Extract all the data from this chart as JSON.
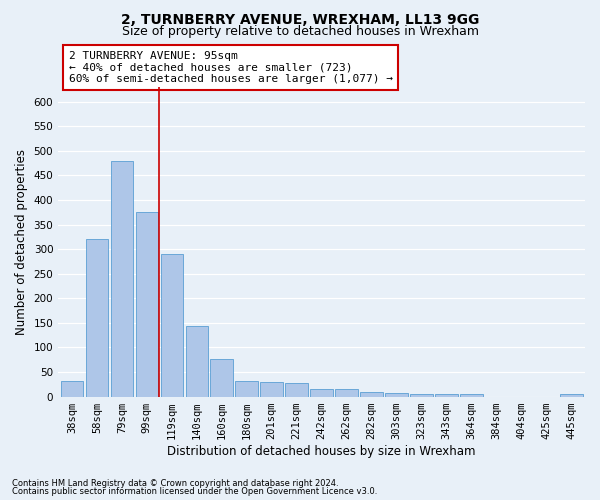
{
  "title": "2, TURNBERRY AVENUE, WREXHAM, LL13 9GG",
  "subtitle": "Size of property relative to detached houses in Wrexham",
  "xlabel": "Distribution of detached houses by size in Wrexham",
  "ylabel": "Number of detached properties",
  "categories": [
    "38sqm",
    "58sqm",
    "79sqm",
    "99sqm",
    "119sqm",
    "140sqm",
    "160sqm",
    "180sqm",
    "201sqm",
    "221sqm",
    "242sqm",
    "262sqm",
    "282sqm",
    "303sqm",
    "323sqm",
    "343sqm",
    "364sqm",
    "384sqm",
    "404sqm",
    "425sqm",
    "445sqm"
  ],
  "values": [
    31,
    320,
    480,
    375,
    290,
    143,
    76,
    32,
    29,
    28,
    16,
    16,
    9,
    8,
    6,
    5,
    5,
    0,
    0,
    0,
    6
  ],
  "bar_color": "#aec6e8",
  "bar_edge_color": "#5a9fd4",
  "vline_x": 3.5,
  "annotation_line1": "2 TURNBERRY AVENUE: 95sqm",
  "annotation_line2": "← 40% of detached houses are smaller (723)",
  "annotation_line3": "60% of semi-detached houses are larger (1,077) →",
  "annotation_box_color": "#ffffff",
  "annotation_box_edge_color": "#cc0000",
  "vline_color": "#cc0000",
  "ylim": [
    0,
    630
  ],
  "yticks": [
    0,
    50,
    100,
    150,
    200,
    250,
    300,
    350,
    400,
    450,
    500,
    550,
    600
  ],
  "footer_line1": "Contains HM Land Registry data © Crown copyright and database right 2024.",
  "footer_line2": "Contains public sector information licensed under the Open Government Licence v3.0.",
  "background_color": "#e8f0f8",
  "plot_bg_color": "#e8f0f8",
  "grid_color": "#ffffff",
  "title_fontsize": 10,
  "subtitle_fontsize": 9,
  "tick_fontsize": 7.5,
  "ylabel_fontsize": 8.5,
  "xlabel_fontsize": 8.5,
  "annotation_fontsize": 8
}
